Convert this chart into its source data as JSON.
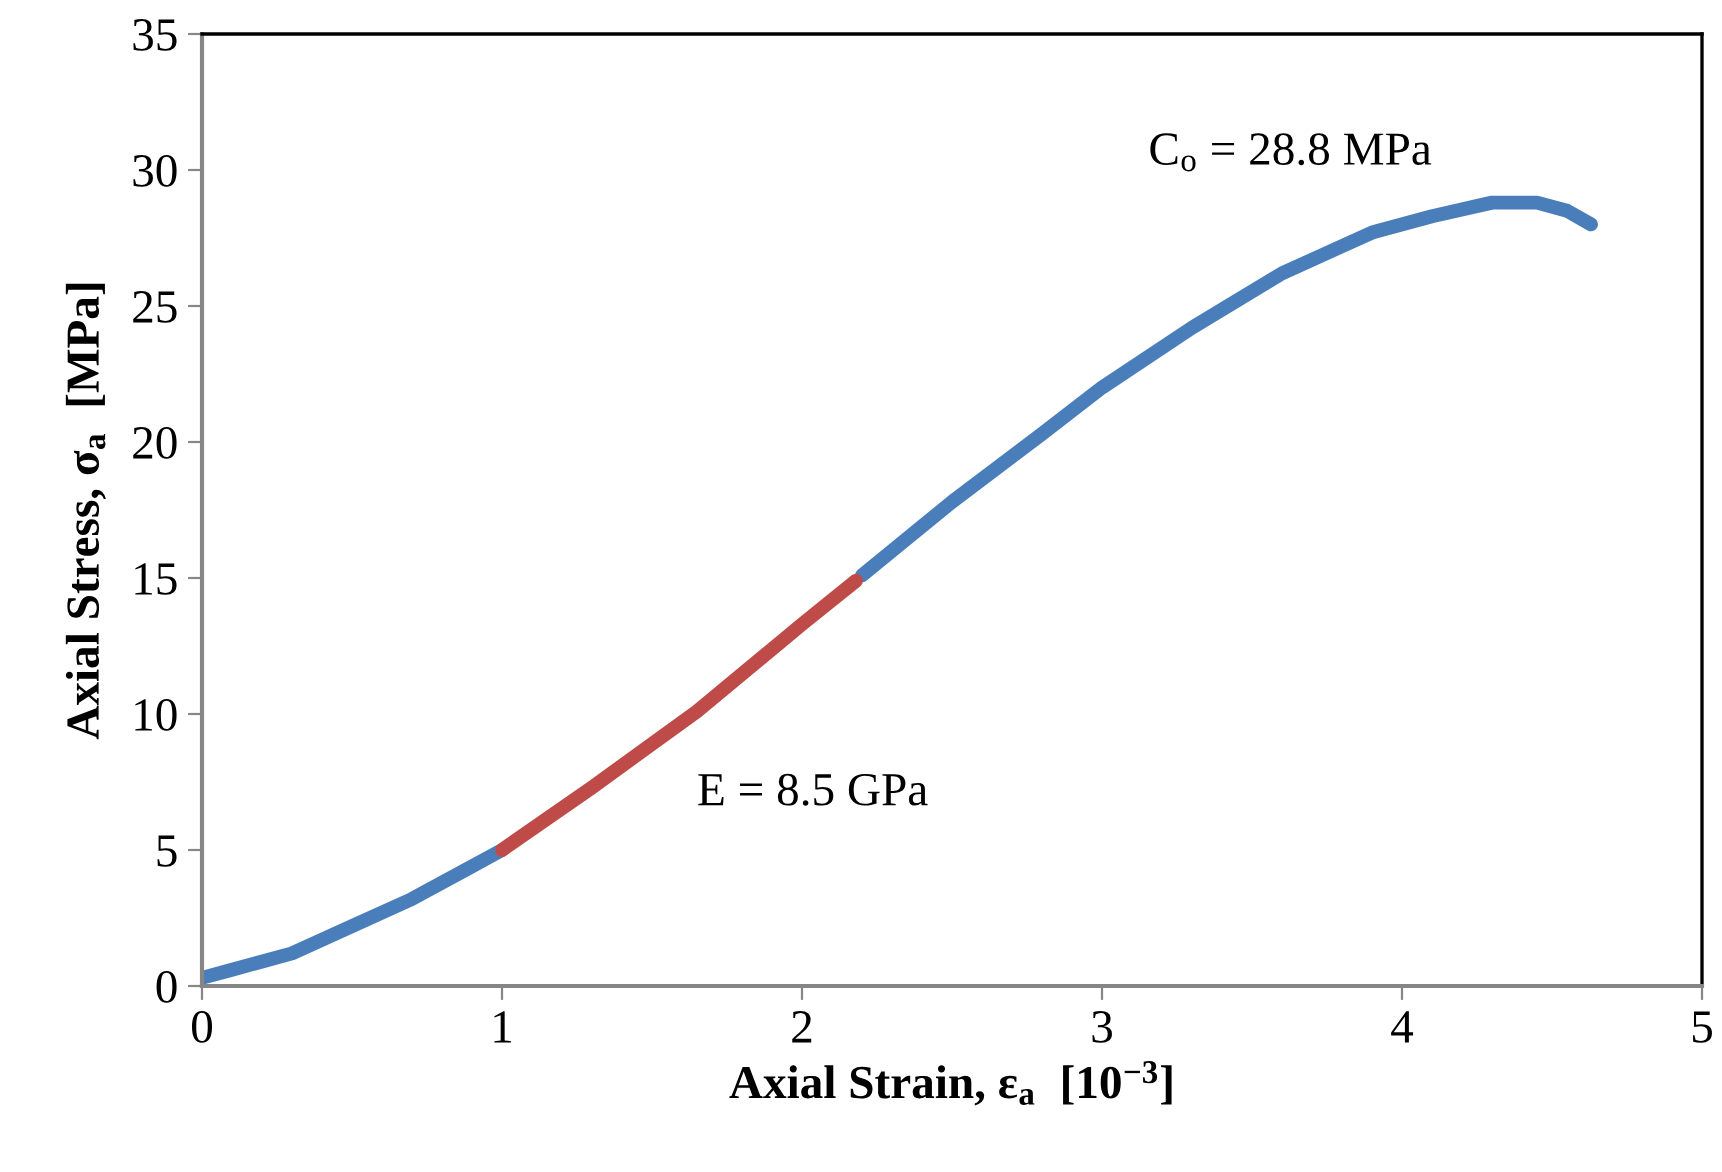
{
  "chart_data": {
    "type": "line",
    "xlabel": "Axial Strain, ε$_{a}$  [10$^{−3}$]",
    "ylabel": "Axial Stress, σ$_{a}$  [MPa]",
    "xlim": [
      0,
      5
    ],
    "xticks": [
      0,
      1,
      2,
      3,
      4,
      5
    ],
    "ylim": [
      0,
      35
    ],
    "yticks": [
      0,
      5,
      10,
      15,
      20,
      25,
      30,
      35
    ],
    "grid": false,
    "legend": false,
    "marker": "none",
    "line_style": "solid",
    "series": [
      {
        "color": "#4a7ebb",
        "x": [
          0,
          0.1,
          0.3,
          0.5,
          0.7,
          0.9,
          1.0,
          1.3,
          1.65,
          2.2,
          2.5,
          2.8,
          3.0,
          3.3,
          3.6,
          3.9,
          4.1,
          4.3,
          4.45,
          4.55,
          4.63
        ],
        "values": [
          0.3,
          0.6,
          1.2,
          2.2,
          3.2,
          4.4,
          5.0,
          null,
          null,
          15.1,
          17.8,
          20.3,
          22.0,
          24.2,
          26.2,
          27.7,
          28.3,
          28.8,
          28.8,
          28.5,
          28.0
        ]
      },
      {
        "color": "#be4b48",
        "x": [
          1.0,
          1.3,
          1.65,
          2.0,
          2.18
        ],
        "values": [
          5.0,
          7.3,
          10.1,
          13.3,
          14.9
        ]
      }
    ],
    "annotations": [
      {
        "text": "C$_{o}$ = 28.8 MPa",
        "x": 4.35,
        "y": 28.8
      },
      {
        "text": "E = 8.5 GPa",
        "x": 1.65,
        "y": 10.1
      }
    ]
  }
}
